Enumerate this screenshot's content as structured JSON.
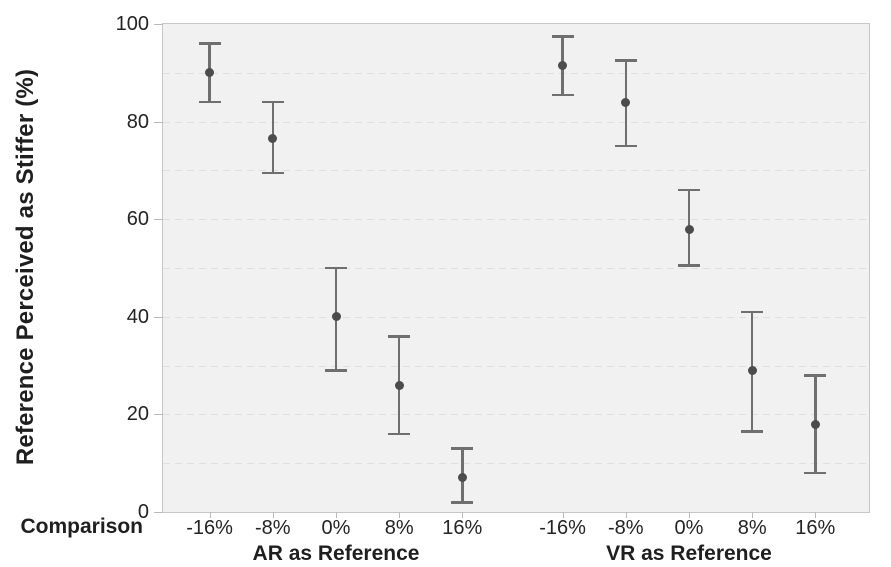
{
  "chart_data": {
    "type": "scatter",
    "error_bars": true,
    "title": "",
    "y_axis_title": "Reference Perceived as Stiffer (%)",
    "x_axis_title": "Comparison",
    "ylim": [
      0,
      100
    ],
    "y_major_ticks": [
      0,
      20,
      40,
      60,
      80,
      100
    ],
    "y_gridline_interval": 10,
    "grid_style": "dashed",
    "legend": "none",
    "categories": [
      "-16%",
      "-8%",
      "0%",
      "8%",
      "16%"
    ],
    "groups": [
      {
        "label": "AR as Reference",
        "values": [
          90,
          76.5,
          40,
          26,
          7
        ],
        "err_low": [
          84,
          69.5,
          29,
          16,
          2
        ],
        "err_high": [
          96,
          84,
          50,
          36,
          13
        ]
      },
      {
        "label": "VR as Reference",
        "values": [
          91.5,
          84,
          58,
          29,
          18
        ],
        "err_low": [
          85.5,
          75,
          50.5,
          16.5,
          8
        ],
        "err_high": [
          97.5,
          92.5,
          66,
          41,
          28
        ]
      }
    ],
    "colors": {
      "point": "#4c4c4c",
      "error_bar": "#6f6f6f",
      "panel_background": "#f1f1f1",
      "panel_border": "#c7c7c7",
      "gridline": "#dfdfdf",
      "text": "#1f1f1f"
    }
  }
}
